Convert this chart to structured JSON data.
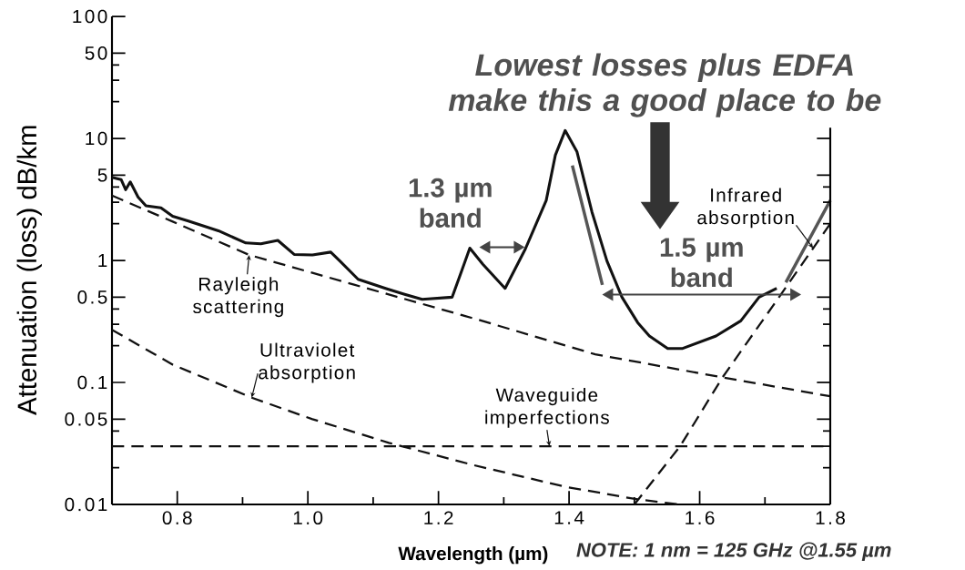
{
  "chart_data": {
    "type": "line",
    "xlabel": "Wavelength (µm)",
    "ylabel": "Attenuation (loss) dB/km",
    "log": "y",
    "xlim": [
      0.7,
      1.8
    ],
    "ylim": [
      0.01,
      100
    ],
    "xticks": [
      0.8,
      {
        "value": 0.9,
        "label": null
      },
      {
        "value": 1,
        "label": "1.0"
      },
      {
        "value": 1.1,
        "label": null
      },
      1.2,
      {
        "value": 1.3,
        "label": null
      },
      1.4,
      {
        "value": 1.5,
        "label": null
      },
      1.6,
      {
        "value": 1.7,
        "label": null
      },
      1.8
    ],
    "yticks": [
      0.01,
      {
        "value": 0.02,
        "label": null
      },
      {
        "value": 0.03,
        "label": null
      },
      {
        "value": 0.04,
        "label": null
      },
      0.05,
      0.1,
      {
        "value": 0.2,
        "label": null
      },
      {
        "value": 0.3,
        "label": null
      },
      {
        "value": 0.4,
        "label": null
      },
      0.5,
      1,
      {
        "value": 2,
        "label": null
      },
      {
        "value": 3,
        "label": null
      },
      {
        "value": 4,
        "label": null
      },
      5,
      10,
      {
        "value": 20,
        "label": null
      },
      {
        "value": 30,
        "label": null
      },
      {
        "value": 40,
        "label": null
      },
      50,
      100
    ],
    "series": [
      {
        "color": "#111111",
        "line_style": "solid",
        "x": [
          0.7,
          0.714,
          0.721,
          0.728,
          0.74,
          0.752,
          0.775,
          0.793,
          0.817,
          0.863,
          0.905,
          0.928,
          0.954,
          0.979,
          1.007,
          1.035,
          1.049,
          1.077,
          1.119,
          1.147,
          1.175,
          1.221,
          1.248,
          1.268,
          1.302,
          1.333,
          1.365,
          1.379,
          1.394,
          1.412,
          1.435,
          1.458,
          1.481,
          1.505,
          1.523,
          1.551,
          1.574,
          1.625,
          1.663,
          1.691,
          1.718
        ],
        "values": [
          4.8,
          4.6,
          3.8,
          4.4,
          3.3,
          2.8,
          2.7,
          2.3,
          2.1,
          1.75,
          1.39,
          1.37,
          1.46,
          1.12,
          1.11,
          1.17,
          0.99,
          0.7,
          0.59,
          0.53,
          0.48,
          0.5,
          1.26,
          0.93,
          0.59,
          1.24,
          3.1,
          7.3,
          11.6,
          7.8,
          2.5,
          0.99,
          0.5,
          0.31,
          0.24,
          0.19,
          0.19,
          0.24,
          0.32,
          0.5,
          0.59
        ]
      },
      {
        "name": "Rayleigh scattering",
        "color": "#111111",
        "line_style": "dashed",
        "x": [
          0.7,
          0.793,
          0.91,
          1.072,
          1.258,
          1.44,
          1.635,
          1.8
        ],
        "values": [
          3.4,
          2.08,
          1.11,
          0.63,
          0.33,
          0.17,
          0.11,
          0.077
        ]
      },
      {
        "name": "Ultraviolet absorption",
        "color": "#111111",
        "line_style": "dashed",
        "x": [
          0.7,
          0.793,
          0.914,
          1.007,
          1.124,
          1.254,
          1.393,
          1.505,
          1.57
        ],
        "values": [
          0.27,
          0.14,
          0.075,
          0.05,
          0.032,
          0.021,
          0.014,
          0.011,
          0.01
        ]
      },
      {
        "name": "Waveguide imperfections",
        "color": "#111111",
        "line_style": "dashed",
        "x": [
          0.7,
          1.8
        ],
        "values": [
          0.03,
          0.03
        ]
      },
      {
        "name": "Infrared absorption",
        "color": "#111111",
        "line_style": "dashed",
        "x": [
          1.5,
          1.57,
          1.635,
          1.718,
          1.8
        ],
        "values": [
          0.01,
          0.03,
          0.11,
          0.47,
          2.0
        ]
      },
      {
        "color": "#555555",
        "line_style": "solid",
        "x": [
          1.405,
          1.451,
          1.6,
          1.732,
          1.8
        ],
        "values": [
          6.0,
          0.63,
          null,
          0.66,
          3.1
        ]
      }
    ],
    "annotations": [
      "Lowest losses plus EDFA make this a good place to be",
      "1.3 µm band",
      "1.5 µm band",
      "NOTE: 1 nm = 125 GHz @1.55 µm"
    ]
  }
}
